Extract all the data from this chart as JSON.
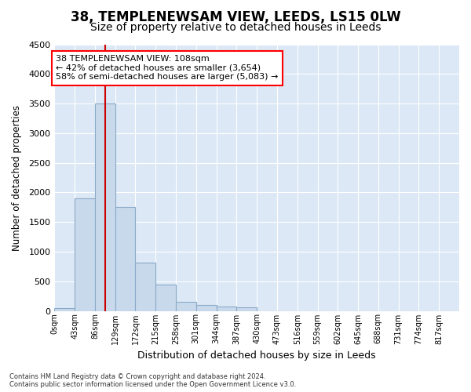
{
  "title": "38, TEMPLENEWSAM VIEW, LEEDS, LS15 0LW",
  "subtitle": "Size of property relative to detached houses in Leeds",
  "xlabel": "Distribution of detached houses by size in Leeds",
  "ylabel": "Number of detached properties",
  "footer_line1": "Contains HM Land Registry data © Crown copyright and database right 2024.",
  "footer_line2": "Contains public sector information licensed under the Open Government Licence v3.0.",
  "annotation_line1": "38 TEMPLENEWSAM VIEW: 108sqm",
  "annotation_line2": "← 42% of detached houses are smaller (3,654)",
  "annotation_line3": "58% of semi-detached houses are larger (5,083) →",
  "bar_color": "#c9d9ec",
  "bar_edge_color": "#8aaac8",
  "red_line_x": 108,
  "bin_edges": [
    0,
    43,
    86,
    129,
    172,
    215,
    258,
    301,
    344,
    387,
    430,
    473,
    516,
    559,
    602,
    645,
    688,
    731,
    774,
    817,
    860
  ],
  "bar_heights": [
    50,
    1900,
    3500,
    1750,
    820,
    450,
    150,
    100,
    75,
    60,
    0,
    0,
    0,
    0,
    0,
    0,
    0,
    0,
    0,
    0
  ],
  "ylim": [
    0,
    4500
  ],
  "yticks": [
    0,
    500,
    1000,
    1500,
    2000,
    2500,
    3000,
    3500,
    4000,
    4500
  ],
  "plot_bg_color": "#dce8f5",
  "grid_color": "#ffffff",
  "title_fontsize": 12,
  "subtitle_fontsize": 10,
  "annotation_fontsize": 8
}
